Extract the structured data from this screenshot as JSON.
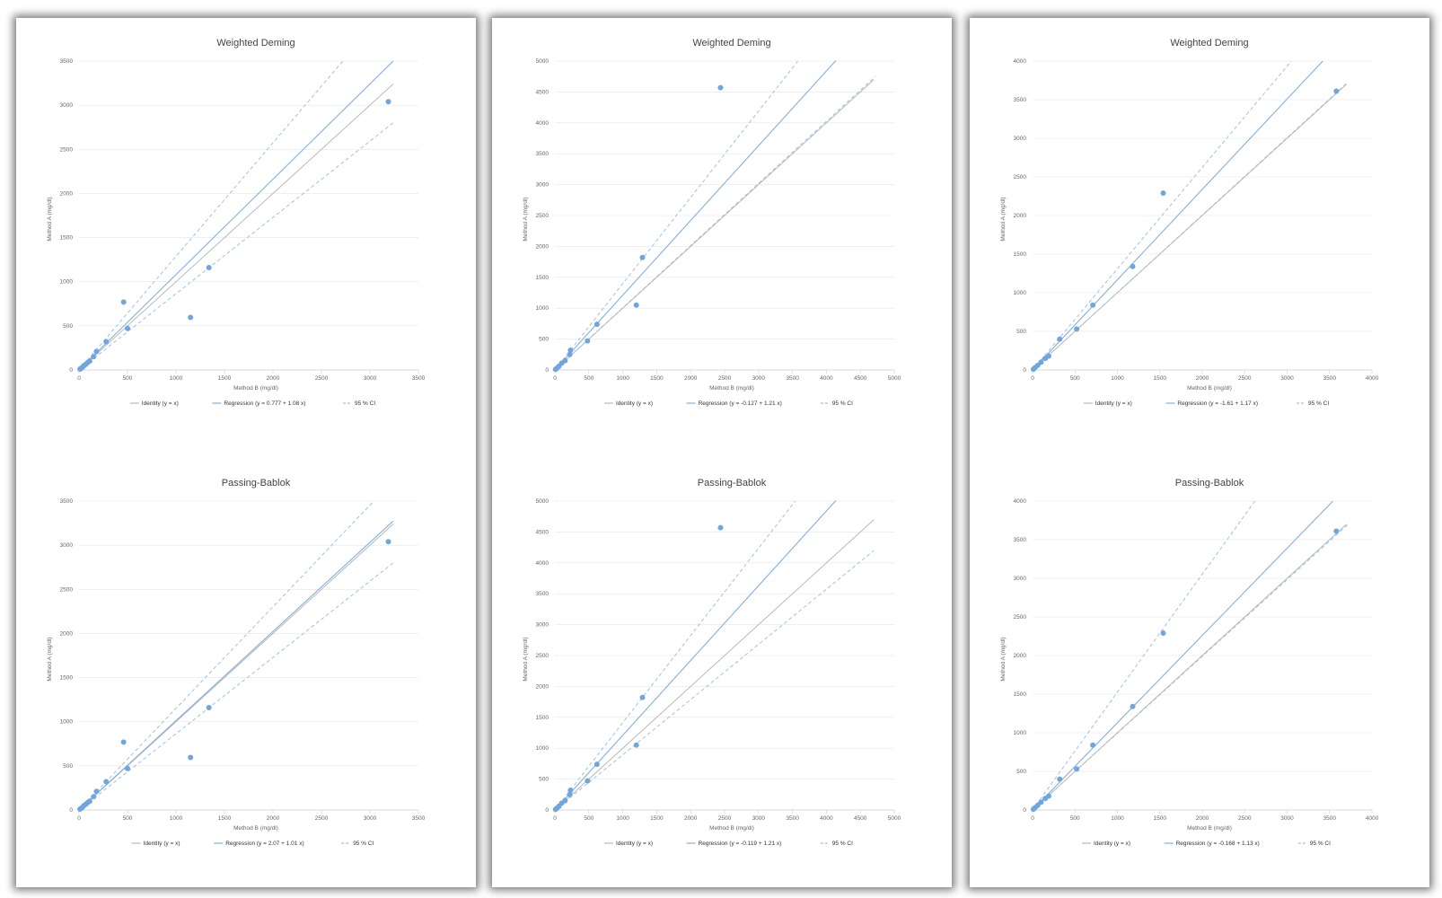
{
  "colors": {
    "identity": "#b9b9b9",
    "regression": "#7fb0e2",
    "ci": "#9bc2e8",
    "point": "#6ea6dd",
    "grid": "#e6e6e6"
  },
  "chart_data": [
    {
      "type": "scatter",
      "panel": 0,
      "row": "top",
      "title": "Weighted Deming",
      "xlabel": "Method B (mg/dl)",
      "ylabel": "Method A (mg/dl)",
      "xlim": [
        0,
        3500
      ],
      "ylim": [
        0,
        3500
      ],
      "xticks": [
        0,
        500,
        1000,
        1500,
        2000,
        2500,
        3000,
        3500
      ],
      "yticks": [
        0,
        500,
        1000,
        1500,
        2000,
        2500,
        3000,
        3500
      ],
      "points": [
        [
          10,
          10
        ],
        [
          20,
          18
        ],
        [
          35,
          30
        ],
        [
          50,
          50
        ],
        [
          70,
          65
        ],
        [
          90,
          85
        ],
        [
          110,
          100
        ],
        [
          150,
          150
        ],
        [
          180,
          210
        ],
        [
          280,
          320
        ],
        [
          460,
          770
        ],
        [
          500,
          470
        ],
        [
          1150,
          595
        ],
        [
          1340,
          1160
        ],
        [
          3190,
          3040
        ]
      ],
      "identity": {
        "x0": 0,
        "x1": 3240
      },
      "regression": {
        "intercept": 0.777,
        "slope": 1.08,
        "x0": 0,
        "x1": 3240
      },
      "ci_upper": [
        [
          0,
          0
        ],
        [
          2720,
          3500
        ]
      ],
      "ci_lower": [
        [
          0,
          0
        ],
        [
          3240,
          2800
        ]
      ],
      "legend": [
        "Identity (y = x)",
        "Regression (y = 0.777 + 1.08 x)",
        "95 % CI"
      ]
    },
    {
      "type": "scatter",
      "panel": 0,
      "row": "bottom",
      "title": "Passing-Bablok",
      "xlabel": "Method B (mg/dl)",
      "ylabel": "Method A (mg/dl)",
      "xlim": [
        0,
        3500
      ],
      "ylim": [
        0,
        3500
      ],
      "xticks": [
        0,
        500,
        1000,
        1500,
        2000,
        2500,
        3000,
        3500
      ],
      "yticks": [
        0,
        500,
        1000,
        1500,
        2000,
        2500,
        3000,
        3500
      ],
      "points": [
        [
          10,
          10
        ],
        [
          20,
          18
        ],
        [
          35,
          30
        ],
        [
          50,
          50
        ],
        [
          70,
          65
        ],
        [
          90,
          85
        ],
        [
          110,
          100
        ],
        [
          150,
          150
        ],
        [
          180,
          210
        ],
        [
          280,
          320
        ],
        [
          460,
          770
        ],
        [
          500,
          470
        ],
        [
          1150,
          595
        ],
        [
          1340,
          1160
        ],
        [
          3190,
          3040
        ]
      ],
      "identity": {
        "x0": 0,
        "x1": 3240
      },
      "regression": {
        "intercept": 2.07,
        "slope": 1.01,
        "x0": 0,
        "x1": 3240
      },
      "ci_upper": [
        [
          0,
          0
        ],
        [
          3040,
          3500
        ]
      ],
      "ci_lower": [
        [
          0,
          0
        ],
        [
          3240,
          2800
        ]
      ],
      "legend": [
        "Identity (y = x)",
        "Regression (y = 2.07 + 1.01 x)",
        "95 % CI"
      ]
    },
    {
      "type": "scatter",
      "panel": 1,
      "row": "top",
      "title": "Weighted Deming",
      "xlabel": "Method B (mg/dl)",
      "ylabel": "Method A (mg/dl)",
      "xlim": [
        0,
        5000
      ],
      "ylim": [
        0,
        5000
      ],
      "xticks": [
        0,
        500,
        1000,
        1500,
        2000,
        2500,
        3000,
        3500,
        4000,
        4500,
        5000
      ],
      "yticks": [
        0,
        500,
        1000,
        1500,
        2000,
        2500,
        3000,
        3500,
        4000,
        4500,
        5000
      ],
      "points": [
        [
          10,
          10
        ],
        [
          30,
          30
        ],
        [
          60,
          60
        ],
        [
          100,
          110
        ],
        [
          150,
          150
        ],
        [
          220,
          250
        ],
        [
          230,
          320
        ],
        [
          480,
          470
        ],
        [
          620,
          740
        ],
        [
          1200,
          1050
        ],
        [
          1290,
          1820
        ],
        [
          2440,
          4570
        ]
      ],
      "identity": {
        "x0": 0,
        "x1": 4700
      },
      "regression": {
        "intercept": -0.127,
        "slope": 1.21,
        "x0": 0,
        "x1": 4140
      },
      "ci_upper": [
        [
          0,
          0
        ],
        [
          3580,
          5000
        ]
      ],
      "ci_lower": [
        [
          0,
          0
        ],
        [
          4720,
          4750
        ]
      ],
      "legend": [
        "Identity (y = x)",
        "Regression (y = -0.127 + 1.21 x)",
        "95 % CI"
      ]
    },
    {
      "type": "scatter",
      "panel": 1,
      "row": "bottom",
      "title": "Passing-Bablok",
      "xlabel": "Method B (mg/dl)",
      "ylabel": "Method A (mg/dl)",
      "xlim": [
        0,
        5000
      ],
      "ylim": [
        0,
        5000
      ],
      "xticks": [
        0,
        500,
        1000,
        1500,
        2000,
        2500,
        3000,
        3500,
        4000,
        4500,
        5000
      ],
      "yticks": [
        0,
        500,
        1000,
        1500,
        2000,
        2500,
        3000,
        3500,
        4000,
        4500,
        5000
      ],
      "points": [
        [
          10,
          10
        ],
        [
          30,
          30
        ],
        [
          60,
          60
        ],
        [
          100,
          110
        ],
        [
          150,
          150
        ],
        [
          220,
          250
        ],
        [
          230,
          320
        ],
        [
          480,
          470
        ],
        [
          620,
          740
        ],
        [
          1200,
          1050
        ],
        [
          1290,
          1820
        ],
        [
          2440,
          4570
        ]
      ],
      "identity": {
        "x0": 0,
        "x1": 4700
      },
      "regression": {
        "intercept": -0.119,
        "slope": 1.21,
        "x0": 0,
        "x1": 4140
      },
      "ci_upper": [
        [
          0,
          0
        ],
        [
          3540,
          5000
        ]
      ],
      "ci_lower": [
        [
          0,
          0
        ],
        [
          4700,
          4200
        ]
      ],
      "legend": [
        "Identity (y = x)",
        "Regression (y = -0.119 + 1.21 x)",
        "95 % CI"
      ]
    },
    {
      "type": "scatter",
      "panel": 2,
      "row": "top",
      "title": "Weighted Deming",
      "xlabel": "Method B (mg/dl)",
      "ylabel": "Method A (mg/dl)",
      "xlim": [
        0,
        4000
      ],
      "ylim": [
        0,
        4000
      ],
      "xticks": [
        0,
        500,
        1000,
        1500,
        2000,
        2500,
        3000,
        3500,
        4000
      ],
      "yticks": [
        0,
        500,
        1000,
        1500,
        2000,
        2500,
        3000,
        3500,
        4000
      ],
      "points": [
        [
          10,
          10
        ],
        [
          30,
          30
        ],
        [
          60,
          60
        ],
        [
          100,
          100
        ],
        [
          150,
          150
        ],
        [
          190,
          180
        ],
        [
          320,
          400
        ],
        [
          520,
          530
        ],
        [
          710,
          840
        ],
        [
          1180,
          1340
        ],
        [
          1540,
          2290
        ],
        [
          3580,
          3610
        ]
      ],
      "identity": {
        "x0": 0,
        "x1": 3700
      },
      "regression": {
        "intercept": -1.61,
        "slope": 1.17,
        "x0": 0,
        "x1": 3420
      },
      "ci_upper": [
        [
          0,
          0
        ],
        [
          3050,
          4000
        ]
      ],
      "ci_lower": [
        [
          0,
          0
        ],
        [
          3720,
          3730
        ]
      ],
      "legend": [
        "Identity (y = x)",
        "Regression (y = -1.61 + 1.17 x)",
        "95 % CI"
      ]
    },
    {
      "type": "scatter",
      "panel": 2,
      "row": "bottom",
      "title": "Passing-Bablok",
      "xlabel": "Method B (mg/dl)",
      "ylabel": "Method A (mg/dl)",
      "xlim": [
        0,
        4000
      ],
      "ylim": [
        0,
        4000
      ],
      "xticks": [
        0,
        500,
        1000,
        1500,
        2000,
        2500,
        3000,
        3500,
        4000
      ],
      "yticks": [
        0,
        500,
        1000,
        1500,
        2000,
        2500,
        3000,
        3500,
        4000
      ],
      "points": [
        [
          10,
          10
        ],
        [
          30,
          30
        ],
        [
          60,
          60
        ],
        [
          100,
          100
        ],
        [
          150,
          150
        ],
        [
          190,
          180
        ],
        [
          320,
          400
        ],
        [
          520,
          530
        ],
        [
          710,
          840
        ],
        [
          1180,
          1340
        ],
        [
          1540,
          2290
        ],
        [
          3580,
          3610
        ]
      ],
      "identity": {
        "x0": 0,
        "x1": 3700
      },
      "regression": {
        "intercept": -0.168,
        "slope": 1.13,
        "x0": 0,
        "x1": 3540
      },
      "ci_upper": [
        [
          0,
          0
        ],
        [
          2620,
          4000
        ]
      ],
      "ci_lower": [
        [
          0,
          0
        ],
        [
          3720,
          3700
        ]
      ],
      "legend": [
        "Identity (y = x)",
        "Regression (y = -0.168 + 1.13 x)",
        "95 % CI"
      ]
    }
  ]
}
